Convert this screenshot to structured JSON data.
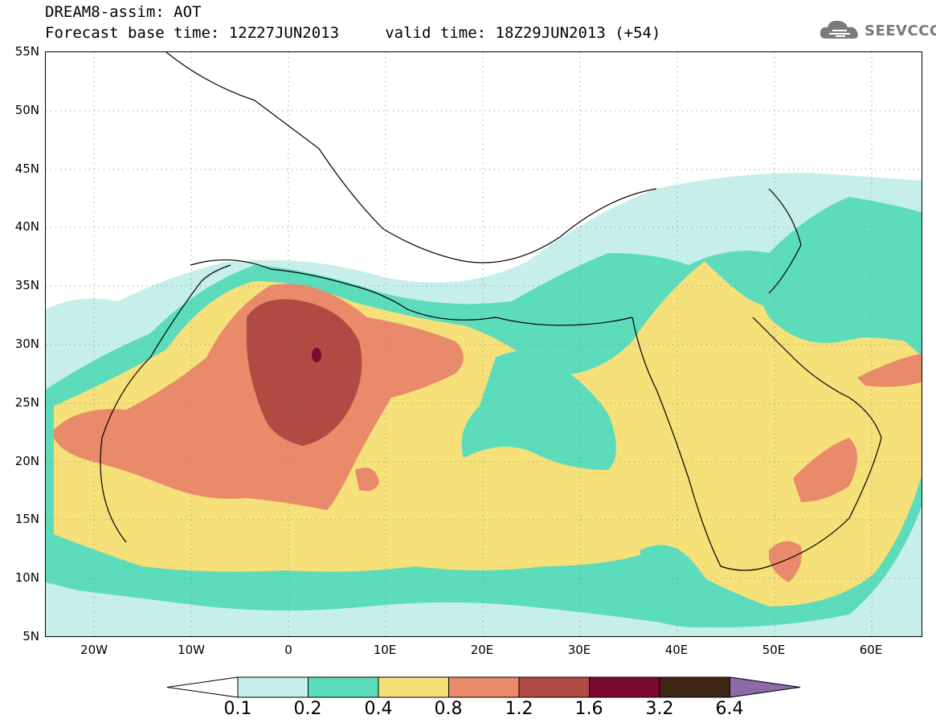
{
  "title": {
    "line1": "DREAM8-assim: AOT",
    "line2": "Forecast base time: 12Z27JUN2013     valid time: 18Z29JUN2013 (+54)"
  },
  "brand": {
    "name": "SEEVCCC",
    "icon": "cloud-logo-icon"
  },
  "map": {
    "lat_ticks": [
      "55N",
      "50N",
      "45N",
      "40N",
      "35N",
      "30N",
      "25N",
      "20N",
      "15N",
      "10N",
      "5N"
    ],
    "lon_ticks": [
      "20W",
      "10W",
      "0",
      "10E",
      "20E",
      "30E",
      "40E",
      "50E",
      "60E"
    ],
    "grid": "dotted",
    "field": "Aerosol Optical Thickness"
  },
  "colorbar": {
    "levels": [
      "0.1",
      "0.2",
      "0.4",
      "0.8",
      "1.2",
      "1.6",
      "3.2",
      "6.4"
    ],
    "colors": [
      "#ffffff",
      "#c6efe9",
      "#5ddcbc",
      "#f5e07a",
      "#e98a6a",
      "#b04a42",
      "#7a0a30",
      "#3e2412",
      "#8a6aa8"
    ]
  }
}
